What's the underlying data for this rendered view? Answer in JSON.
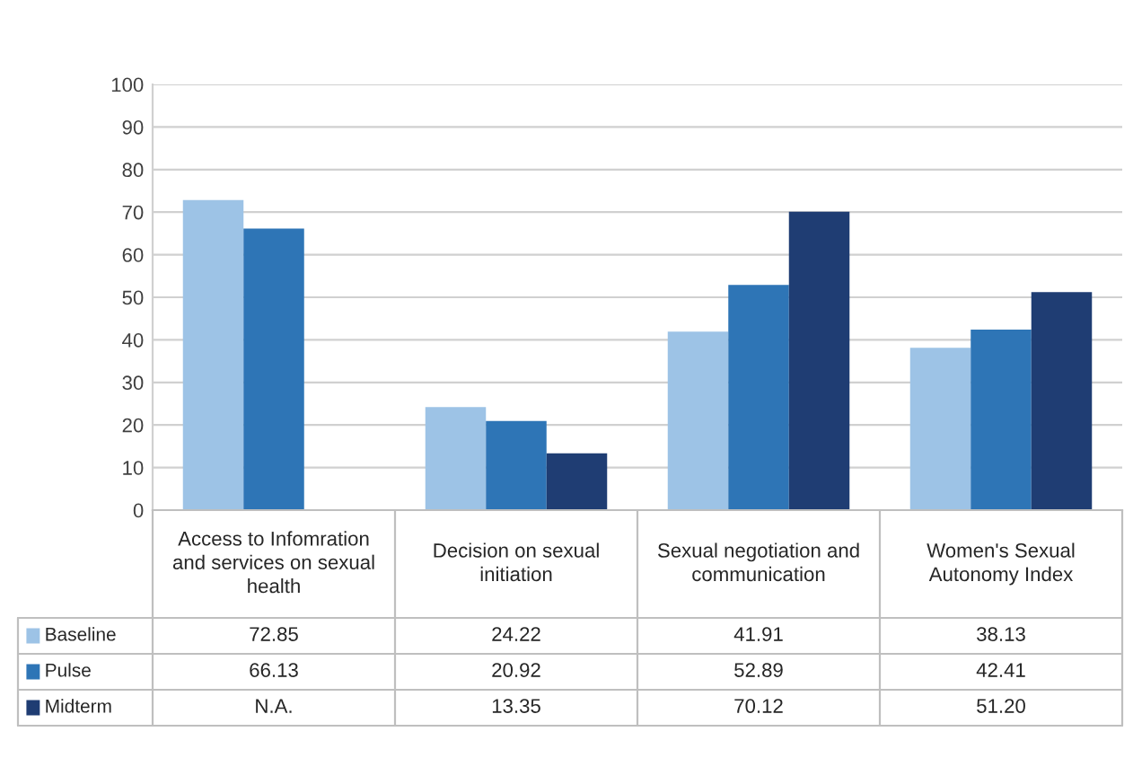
{
  "chart_data": {
    "type": "bar",
    "categories": [
      "Access to Infomration and services on sexual health",
      "Decision on sexual initiation",
      "Sexual negotiation and communication",
      "Women's Sexual Autonomy Index"
    ],
    "series": [
      {
        "name": "Baseline",
        "color": "#9dc3e6",
        "values": [
          72.85,
          24.22,
          41.91,
          38.13
        ],
        "value_labels": [
          "72.85",
          "24.22",
          "41.91",
          "38.13"
        ]
      },
      {
        "name": "Pulse",
        "color": "#2e75b6",
        "values": [
          66.13,
          20.92,
          52.89,
          42.41
        ],
        "value_labels": [
          "66.13",
          "20.92",
          "52.89",
          "42.41"
        ]
      },
      {
        "name": "Midterm",
        "color": "#1f3d73",
        "values": [
          null,
          13.35,
          70.12,
          51.2
        ],
        "value_labels": [
          "N.A.",
          "13.35",
          "70.12",
          "51.20"
        ]
      }
    ],
    "ylim": [
      0,
      100
    ],
    "yticks": [
      0,
      10,
      20,
      30,
      40,
      50,
      60,
      70,
      80,
      90,
      100
    ],
    "grid": "y",
    "legend": "bottom left"
  }
}
